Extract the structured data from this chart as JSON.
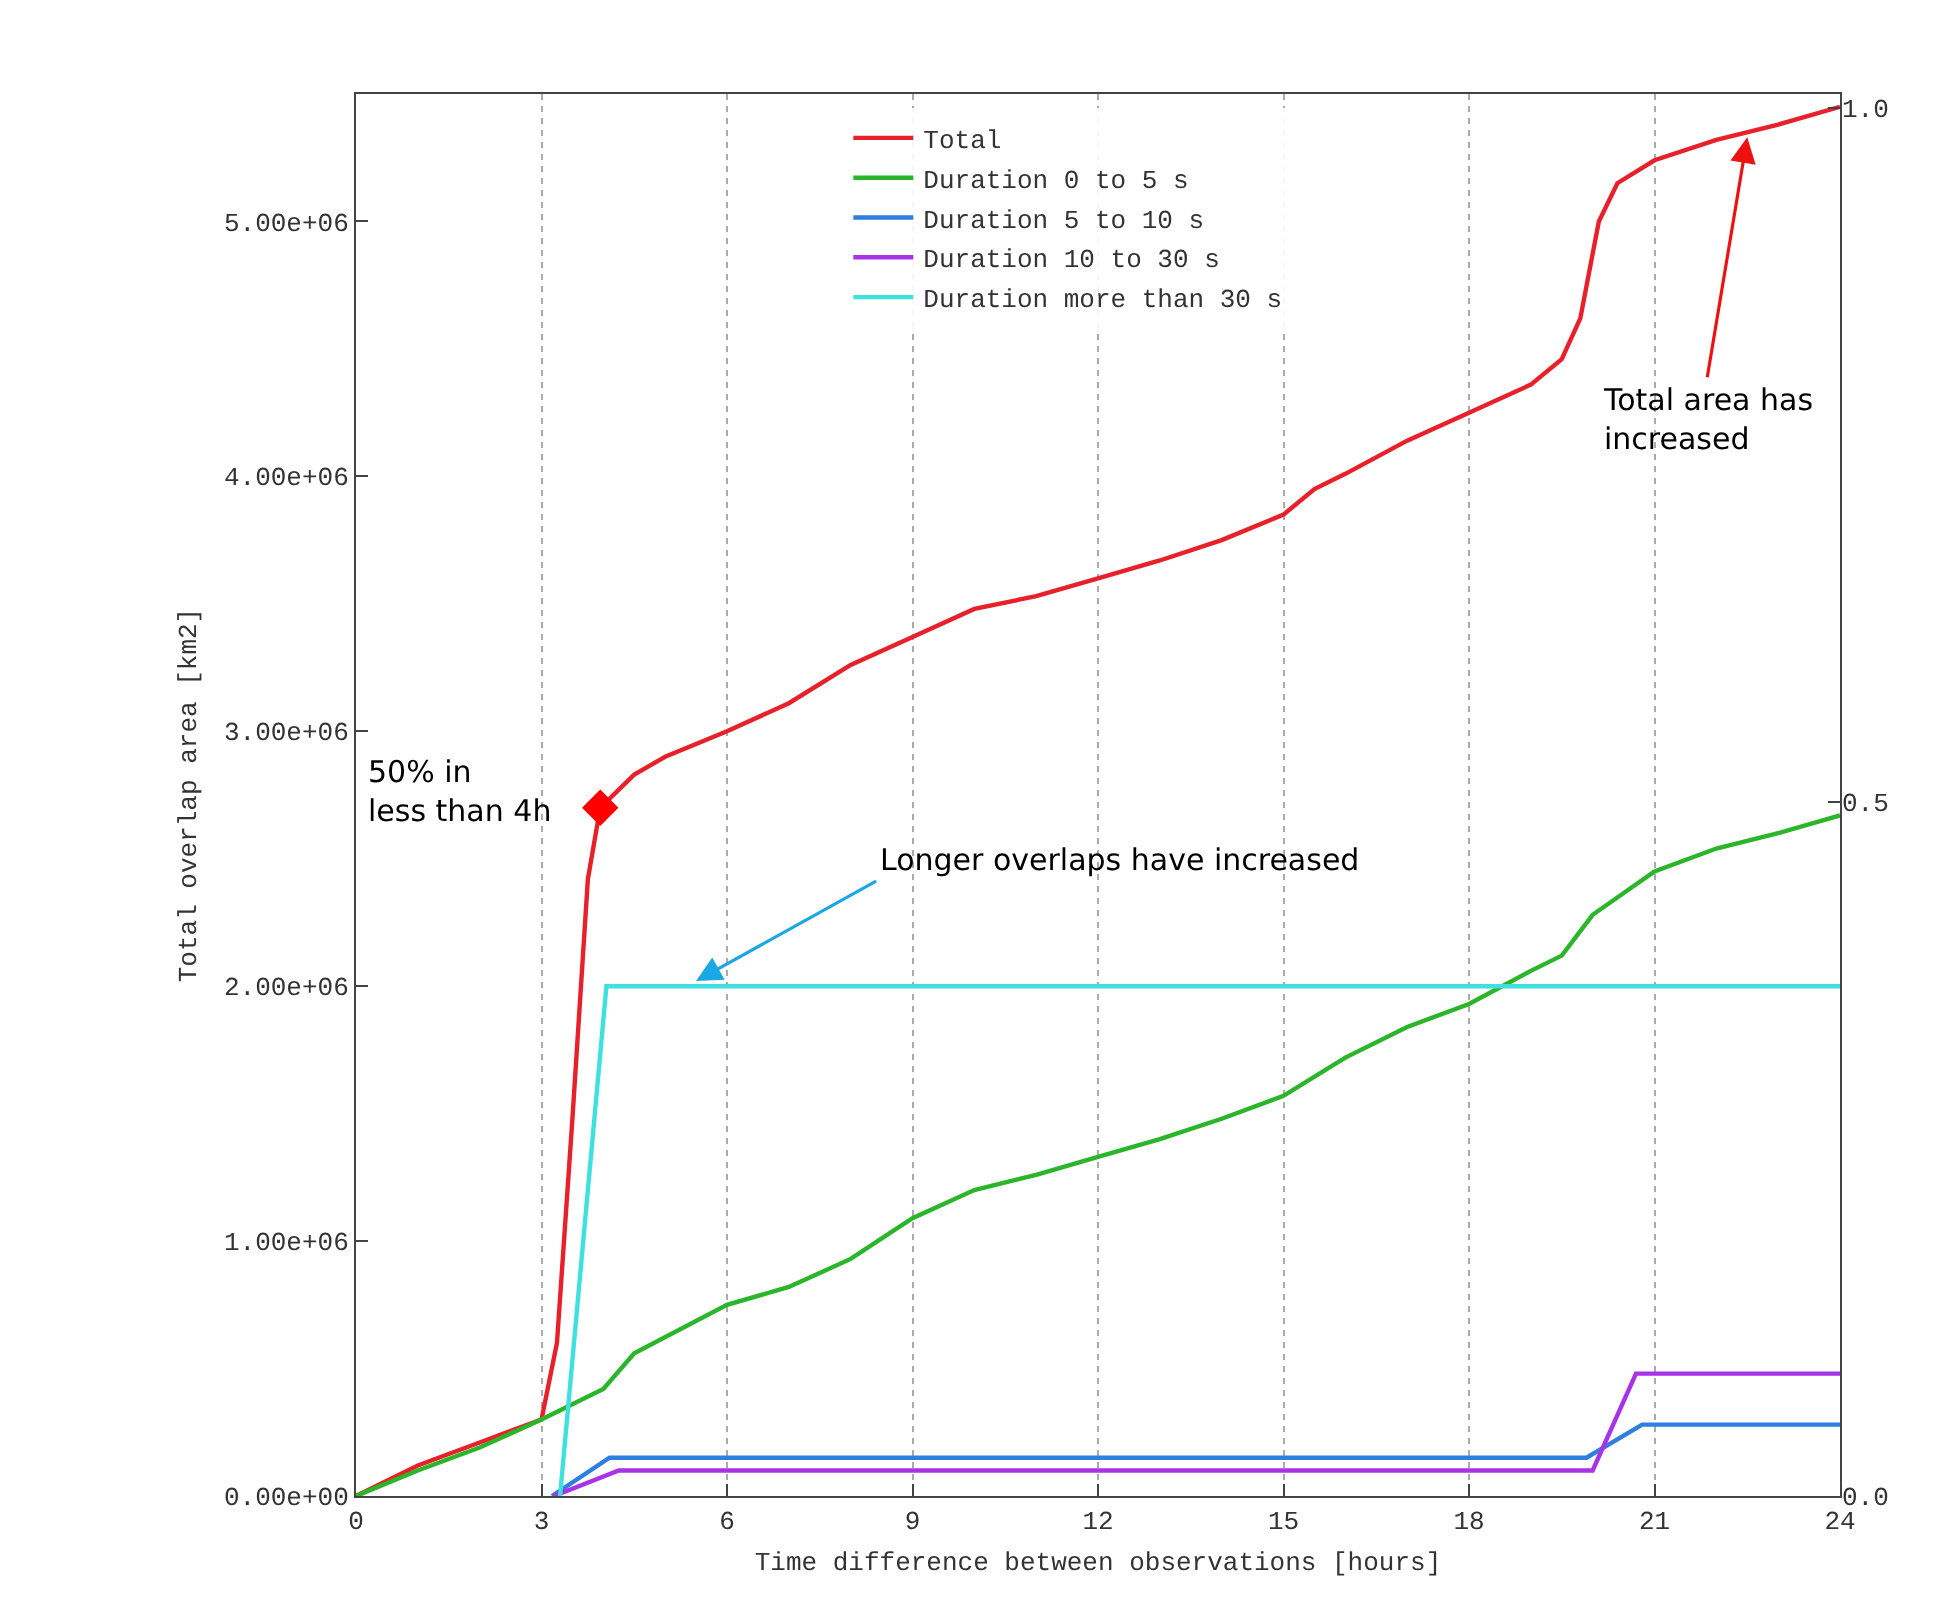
{
  "chart_data": {
    "type": "line",
    "xlabel": "Time difference between observations [hours]",
    "ylabel": "Total overlap area [km2]",
    "xlim": [
      0,
      24
    ],
    "xticks": [
      0,
      3,
      6,
      9,
      12,
      15,
      18,
      21,
      24
    ],
    "ylim": [
      0,
      5500000
    ],
    "yticks": [
      {
        "value": 0,
        "label": "0.00e+00"
      },
      {
        "value": 1000000,
        "label": "1.00e+06"
      },
      {
        "value": 2000000,
        "label": "2.00e+06"
      },
      {
        "value": 3000000,
        "label": "3.00e+06"
      },
      {
        "value": 4000000,
        "label": "4.00e+06"
      },
      {
        "value": 5000000,
        "label": "5.00e+06"
      }
    ],
    "y2lim": [
      0,
      1.01
    ],
    "y2ticks": [
      {
        "value": 0,
        "label": "0.0"
      },
      {
        "value": 0.5,
        "label": "0.5"
      },
      {
        "value": 1,
        "label": "1.0"
      }
    ],
    "grid": "x",
    "legend": "top",
    "line_style": "solid",
    "marker": "none",
    "series": [
      {
        "name": "Total",
        "color": "#e8202a",
        "x": [
          0,
          1,
          2,
          3,
          3.25,
          3.5,
          3.75,
          3.95,
          4.5,
          5,
          6,
          7,
          8,
          9,
          10,
          11,
          12,
          13,
          14,
          15,
          15.5,
          16,
          17,
          18,
          19,
          19.5,
          19.8,
          20.1,
          20.4,
          21,
          22,
          23,
          24
        ],
        "values": [
          0,
          120000,
          210000,
          300000,
          600000,
          1480000,
          2420000,
          2700000,
          2830000,
          2900000,
          3000000,
          3110000,
          3260000,
          3370000,
          3480000,
          3530000,
          3600000,
          3670000,
          3750000,
          3850000,
          3950000,
          4010000,
          4140000,
          4250000,
          4360000,
          4460000,
          4620000,
          5000000,
          5150000,
          5240000,
          5320000,
          5380000,
          5450000
        ]
      },
      {
        "name": "Duration 0 to 5 s",
        "color": "#2bb52b",
        "x": [
          0,
          1,
          2,
          3,
          4,
          4.5,
          6,
          7,
          8,
          9,
          10,
          11,
          12,
          13,
          14,
          15,
          16,
          17,
          18,
          19,
          19.5,
          20,
          21,
          22,
          23,
          24
        ],
        "values": [
          0,
          100000,
          190000,
          300000,
          420000,
          560000,
          750000,
          820000,
          930000,
          1090000,
          1200000,
          1260000,
          1330000,
          1400000,
          1480000,
          1570000,
          1720000,
          1840000,
          1930000,
          2060000,
          2120000,
          2280000,
          2450000,
          2540000,
          2600000,
          2670000
        ]
      },
      {
        "name": "Duration 5 to 10 s",
        "color": "#2f7fe0",
        "x": [
          3.17,
          4.1,
          19.9,
          20.8,
          24
        ],
        "values": [
          0,
          150000,
          150000,
          280000,
          280000
        ]
      },
      {
        "name": "Duration 10 to 30 s",
        "color": "#a832e6",
        "x": [
          3.2,
          4.25,
          20.0,
          20.7,
          24
        ],
        "values": [
          0,
          100000,
          100000,
          480000,
          480000
        ]
      },
      {
        "name": "Duration more than 30 s",
        "color": "#3fe0e0",
        "x": [
          3.3,
          4.05,
          24
        ],
        "values": [
          0,
          2000000,
          2000000
        ]
      },
      {
        "type": "scatter",
        "marker": "diamond",
        "color": "#ff0000",
        "x": [
          3.95
        ],
        "values": [
          2700000
        ]
      }
    ],
    "annotations": [
      {
        "text": "50% in\nless than 4h",
        "x": 3.95,
        "y": 2700000
      },
      {
        "text": "Longer overlaps have increased",
        "x": 5.5,
        "y": 2020000
      },
      {
        "text": "Total area has\nincreased",
        "x": 22.5,
        "y": 5330000
      }
    ]
  }
}
